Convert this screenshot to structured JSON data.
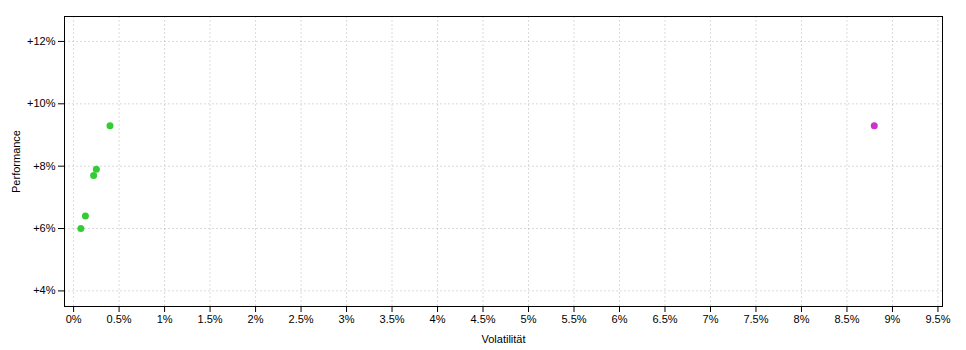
{
  "chart_data": {
    "type": "scatter",
    "xlabel": "Volatilität",
    "ylabel": "Performance",
    "xlim": [
      -0.001,
      0.0955
    ],
    "ylim": [
      0.035,
      0.128
    ],
    "xticks": [
      {
        "value": 0.0,
        "label": "0%"
      },
      {
        "value": 0.005,
        "label": "0.5%"
      },
      {
        "value": 0.01,
        "label": "1%"
      },
      {
        "value": 0.015,
        "label": "1.5%"
      },
      {
        "value": 0.02,
        "label": "2%"
      },
      {
        "value": 0.025,
        "label": "2.5%"
      },
      {
        "value": 0.03,
        "label": "3%"
      },
      {
        "value": 0.035,
        "label": "3.5%"
      },
      {
        "value": 0.04,
        "label": "4%"
      },
      {
        "value": 0.045,
        "label": "4.5%"
      },
      {
        "value": 0.05,
        "label": "5%"
      },
      {
        "value": 0.055,
        "label": "5.5%"
      },
      {
        "value": 0.06,
        "label": "6%"
      },
      {
        "value": 0.065,
        "label": "6.5%"
      },
      {
        "value": 0.07,
        "label": "7%"
      },
      {
        "value": 0.075,
        "label": "7.5%"
      },
      {
        "value": 0.08,
        "label": "8%"
      },
      {
        "value": 0.085,
        "label": "8.5%"
      },
      {
        "value": 0.09,
        "label": "9%"
      },
      {
        "value": 0.095,
        "label": "9.5%"
      }
    ],
    "yticks": [
      {
        "value": 0.04,
        "label": "+4%"
      },
      {
        "value": 0.06,
        "label": "+6%"
      },
      {
        "value": 0.08,
        "label": "+8%"
      },
      {
        "value": 0.1,
        "label": "+10%"
      },
      {
        "value": 0.12,
        "label": "+12%"
      }
    ],
    "grid": true,
    "series": [
      {
        "color": "#33cc33",
        "x": [
          0.004,
          0.0025,
          0.0022,
          0.0013,
          0.0008
        ],
        "values": [
          0.093,
          0.079,
          0.077,
          0.064,
          0.06
        ]
      },
      {
        "color": "#cc33cc",
        "x": [
          0.088
        ],
        "values": [
          0.093
        ]
      }
    ]
  }
}
